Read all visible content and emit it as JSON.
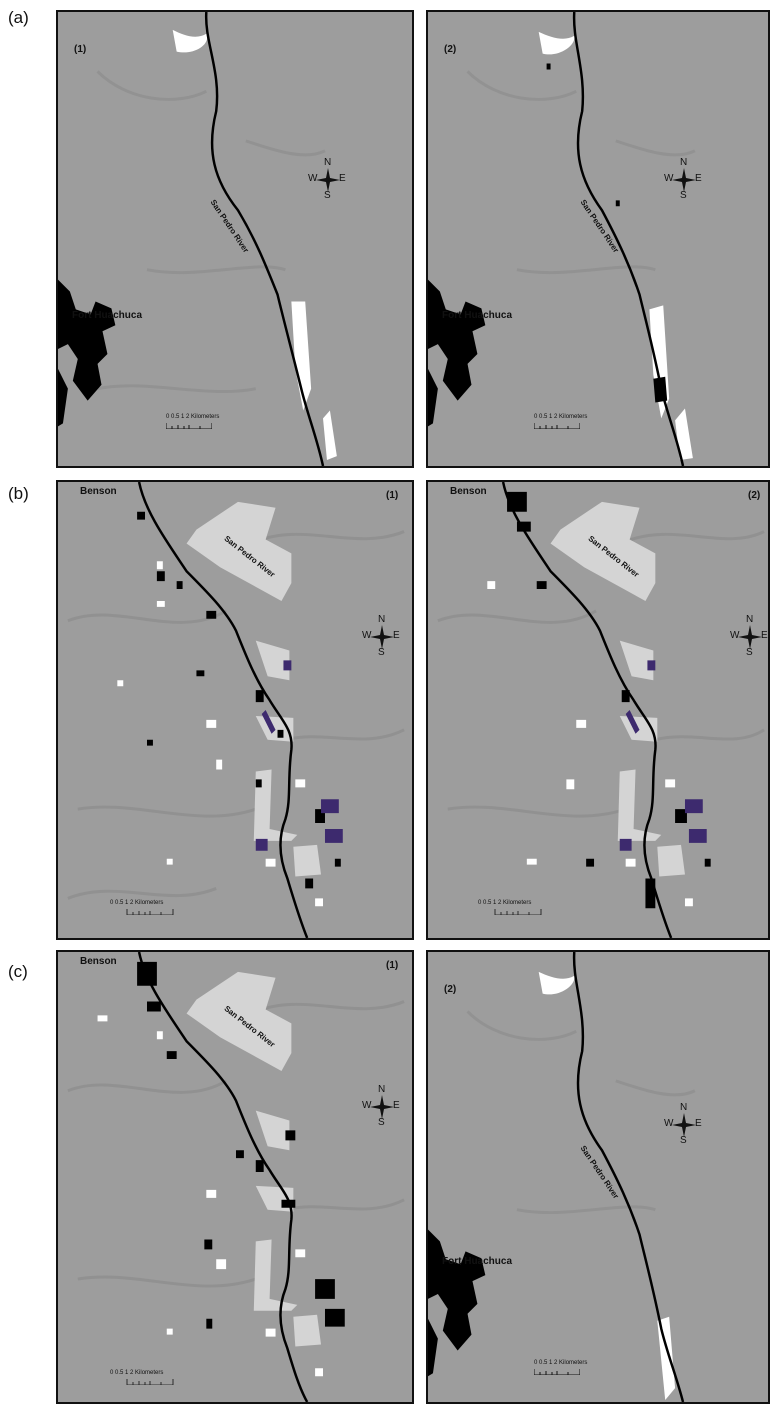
{
  "figure": {
    "rows": [
      {
        "label": "(a)",
        "panels": [
          {
            "number": "(1)",
            "place": "Fort Huachuca",
            "river": "San Pedro River",
            "scale_ticks": "0 0.5  1      2 Kilometers"
          },
          {
            "number": "(2)",
            "place": "Fort Huachuca",
            "river": "San Pedro River",
            "scale_ticks": "0 0.5  1      2 Kilometers"
          }
        ]
      },
      {
        "label": "(b)",
        "panels": [
          {
            "number": "(1)",
            "place": "Benson",
            "river": "San Pedro River",
            "scale_ticks": "0    0.5     1           2 Kilometers"
          },
          {
            "number": "(2)",
            "place": "Benson",
            "river": "San Pedro River",
            "scale_ticks": "0    0.5     1           2 Kilometers"
          }
        ]
      },
      {
        "label": "(c)",
        "panels": [
          {
            "number": "(1)",
            "place": "Benson",
            "river": "San Pedro River",
            "scale_ticks": "0    0.5     1           2 Kilometers"
          },
          {
            "number": "(2)",
            "place": "Fort Huachuca",
            "river": "San Pedro River",
            "scale_ticks": "0 0.5  1      2 Kilometers"
          }
        ]
      }
    ],
    "compass": {
      "n": "N",
      "s": "S",
      "e": "E",
      "w": "W"
    },
    "colors": {
      "terrain": "#9d9d9d",
      "river": "#000000",
      "urban": "#000000",
      "riparian": "#ffffff",
      "protected": "#d4d4d4",
      "class_purple": "#3d2a6e"
    }
  }
}
